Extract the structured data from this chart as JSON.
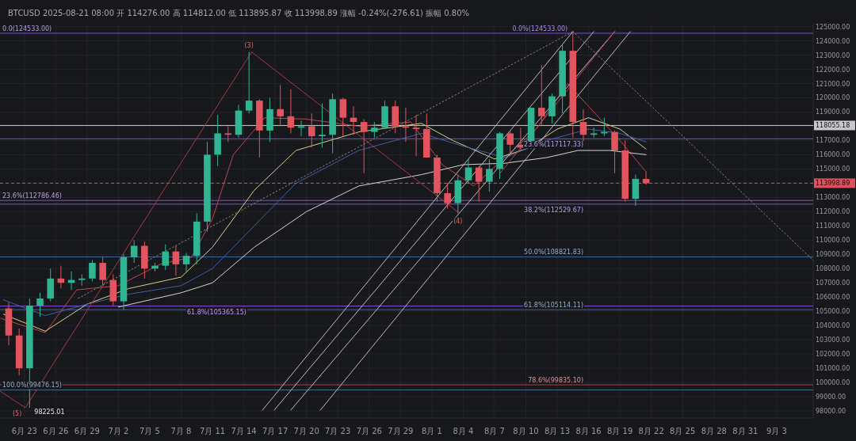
{
  "chart_data": {
    "type": "candlestick",
    "subtitle": "BTCUSD 2025-08-21 08:00 开 114276.00 高 114812.00 低 113895.87 收 113998.89 涨幅 -0.24%(-276.61) 振幅 0.80%",
    "x": [
      "2025-06-21T12:00",
      "2025-06-22T12:00",
      "2025-06-23T12:00",
      "2025-06-24T12:00",
      "2025-06-25T12:00",
      "2025-06-26T12:00",
      "2025-06-27T12:00",
      "2025-06-28T12:00",
      "2025-06-29T12:00",
      "2025-06-30T12:00",
      "2025-07-01T12:00",
      "2025-07-02T12:00",
      "2025-07-03T12:00",
      "2025-07-04T12:00",
      "2025-07-05T12:00",
      "2025-07-06T12:00",
      "2025-07-07T12:00",
      "2025-07-08T12:00",
      "2025-07-09T12:00",
      "2025-07-10T12:00",
      "2025-07-11T12:00",
      "2025-07-12T12:00",
      "2025-07-13T12:00",
      "2025-07-14T12:00",
      "2025-07-15T12:00",
      "2025-07-16T12:00",
      "2025-07-17T12:00",
      "2025-07-18T12:00",
      "2025-07-19T12:00",
      "2025-07-20T12:00",
      "2025-07-21T12:00",
      "2025-07-22T12:00",
      "2025-07-23T12:00",
      "2025-07-24T12:00",
      "2025-07-25T12:00",
      "2025-07-26T12:00",
      "2025-07-27T12:00",
      "2025-07-28T12:00",
      "2025-07-29T12:00",
      "2025-07-30T12:00",
      "2025-07-31T12:00",
      "2025-08-01T12:00",
      "2025-08-02T12:00",
      "2025-08-03T12:00",
      "2025-08-04T12:00",
      "2025-08-05T12:00",
      "2025-08-06T12:00",
      "2025-08-07T12:00",
      "2025-08-08T12:00",
      "2025-08-09T12:00",
      "2025-08-10T12:00",
      "2025-08-11T12:00",
      "2025-08-12T12:00",
      "2025-08-13T12:00",
      "2025-08-14T12:00",
      "2025-08-15T12:00",
      "2025-08-16T12:00",
      "2025-08-17T12:00",
      "2025-08-18T12:00",
      "2025-08-19T12:00",
      "2025-08-20T12:00",
      "2025-08-21T12:00"
    ],
    "ohlc": [
      [
        105200,
        105600,
        102600,
        103300
      ],
      [
        103300,
        103800,
        100500,
        101000
      ],
      [
        101000,
        105900,
        98225.01,
        105400
      ],
      [
        105400,
        106300,
        104600,
        105900
      ],
      [
        105900,
        108000,
        105700,
        107300
      ],
      [
        107300,
        108200,
        106600,
        107000
      ],
      [
        107000,
        107800,
        106500,
        107200
      ],
      [
        107200,
        107600,
        106800,
        107300
      ],
      [
        107300,
        108600,
        107100,
        108400
      ],
      [
        108400,
        108800,
        106800,
        107200
      ],
      [
        107200,
        107600,
        105400,
        105700
      ],
      [
        105700,
        109000,
        105100,
        108800
      ],
      [
        108800,
        110000,
        108400,
        109600
      ],
      [
        109600,
        109900,
        107300,
        108000
      ],
      [
        108000,
        108400,
        107800,
        108200
      ],
      [
        108200,
        109700,
        107900,
        109200
      ],
      [
        109200,
        109600,
        107500,
        108300
      ],
      [
        108300,
        109100,
        107700,
        108900
      ],
      [
        108900,
        111900,
        108300,
        111300
      ],
      [
        111300,
        116900,
        110600,
        116000
      ],
      [
        116000,
        118800,
        115200,
        117500
      ],
      [
        117500,
        118000,
        116900,
        117400
      ],
      [
        117400,
        119500,
        117200,
        119100
      ],
      [
        119100,
        123218,
        118900,
        119800
      ],
      [
        119800,
        119900,
        115800,
        117700
      ],
      [
        117700,
        120000,
        116900,
        119200
      ],
      [
        119200,
        120900,
        118000,
        118700
      ],
      [
        118700,
        120600,
        117500,
        117900
      ],
      [
        117900,
        118400,
        117300,
        118000
      ],
      [
        118000,
        118900,
        116500,
        117300
      ],
      [
        117300,
        119600,
        116500,
        117400
      ],
      [
        117400,
        120300,
        116100,
        119900
      ],
      [
        119900,
        120000,
        117300,
        118600
      ],
      [
        118600,
        119400,
        117400,
        118300
      ],
      [
        118300,
        118500,
        114700,
        117600
      ],
      [
        117600,
        118300,
        117200,
        117900
      ],
      [
        117900,
        119800,
        117800,
        119400
      ],
      [
        119400,
        119800,
        117500,
        118000
      ],
      [
        118000,
        119300,
        116900,
        117900
      ],
      [
        117900,
        118800,
        115900,
        117800
      ],
      [
        117800,
        118900,
        115800,
        115800
      ],
      [
        115800,
        116000,
        112700,
        113300
      ],
      [
        113300,
        114000,
        112200,
        112600
      ],
      [
        112600,
        114600,
        111920,
        114200
      ],
      [
        114200,
        115700,
        114000,
        115100
      ],
      [
        115100,
        115200,
        112700,
        114100
      ],
      [
        114100,
        115700,
        113400,
        115000
      ],
      [
        115000,
        117600,
        114300,
        117500
      ],
      [
        117500,
        117700,
        115900,
        116700
      ],
      [
        116700,
        117900,
        116300,
        116500
      ],
      [
        116500,
        119300,
        116400,
        119300
      ],
      [
        119300,
        122300,
        118100,
        118700
      ],
      [
        118700,
        120300,
        118200,
        120100
      ],
      [
        120100,
        123700,
        118900,
        123300
      ],
      [
        123300,
        124533,
        117200,
        118300
      ],
      [
        118300,
        119200,
        116800,
        117400
      ],
      [
        117400,
        117900,
        117200,
        117500
      ],
      [
        117500,
        118600,
        117300,
        117600
      ],
      [
        117600,
        117700,
        114700,
        116300
      ],
      [
        116300,
        117000,
        112700,
        112900
      ],
      [
        112900,
        114600,
        112400,
        114300
      ],
      [
        114300,
        114812,
        113895.87,
        113998.89
      ]
    ],
    "colors": [
      "#e2545e",
      "#e2545e",
      "#2fb592",
      "#2fb592",
      "#2fb592",
      "#e2545e",
      "#2fb592",
      "#2fb592",
      "#2fb592",
      "#e2545e",
      "#e2545e",
      "#2fb592",
      "#2fb592",
      "#e2545e",
      "#2fb592",
      "#2fb592",
      "#e2545e",
      "#2fb592",
      "#2fb592",
      "#2fb592",
      "#2fb592",
      "#e2545e",
      "#2fb592",
      "#2fb592",
      "#e2545e",
      "#2fb592",
      "#e2545e",
      "#e2545e",
      "#2fb592",
      "#e2545e",
      "#2fb592",
      "#2fb592",
      "#e2545e",
      "#e2545e",
      "#e2545e",
      "#2fb592",
      "#2fb592",
      "#e2545e",
      "#e2545e",
      "#e2545e",
      "#e2545e",
      "#e2545e",
      "#e2545e",
      "#2fb592",
      "#2fb592",
      "#e2545e",
      "#2fb592",
      "#2fb592",
      "#e2545e",
      "#e2545e",
      "#2fb592",
      "#e2545e",
      "#2fb592",
      "#2fb592",
      "#e2545e",
      "#e2545e",
      "#2fb592",
      "#2fb592",
      "#e2545e",
      "#e2545e",
      "#2fb592",
      "#e2545e"
    ],
    "series": [
      {
        "type": "line",
        "color": "#c0454e",
        "line_style": "solid",
        "x": [
          "2025-06-20T18:00",
          "2025-06-25T00:00",
          "2025-06-28T00:00",
          "2025-07-02T00:00",
          "2025-07-06T00:00",
          "2025-07-09T00:00",
          "2025-07-11T00:00",
          "2025-07-13T00:00",
          "2025-07-16T00:00",
          "2025-07-20T00:00",
          "2025-07-25T00:00",
          "2025-07-30T00:00",
          "2025-08-02T00:00",
          "2025-08-05T00:00",
          "2025-08-08T00:00",
          "2025-08-11T00:00",
          "2025-08-14T00:00",
          "2025-08-16T00:00",
          "2025-08-19T00:00",
          "2025-08-21T12:00"
        ],
        "values": [
          104500,
          103500,
          106500,
          106800,
          108300,
          108800,
          111500,
          116000,
          118600,
          118500,
          118000,
          118300,
          115300,
          113800,
          115800,
          117800,
          121000,
          119400,
          117000,
          114800
        ]
      },
      {
        "type": "line",
        "color": "#d6d08a",
        "line_style": "solid",
        "x": [
          "2025-06-21T00:00",
          "2025-06-25T00:00",
          "2025-06-29T00:00",
          "2025-07-03T00:00",
          "2025-07-08T00:00",
          "2025-07-11T00:00",
          "2025-07-15T00:00",
          "2025-07-19T00:00",
          "2025-07-25T00:00",
          "2025-07-31T00:00",
          "2025-08-03T00:00",
          "2025-08-07T00:00",
          "2025-08-10T00:00",
          "2025-08-13T00:00",
          "2025-08-16T00:00",
          "2025-08-19T00:00",
          "2025-08-21T12:00"
        ],
        "values": [
          104800,
          103600,
          105500,
          106600,
          107400,
          109500,
          113500,
          116300,
          117600,
          118200,
          117000,
          115700,
          116400,
          117800,
          118600,
          117800,
          116400
        ]
      },
      {
        "type": "line",
        "color": "#3f5fa8",
        "line_style": "solid",
        "x": [
          "2025-06-21T00:00",
          "2025-06-25T00:00",
          "2025-06-29T00:00",
          "2025-07-03T00:00",
          "2025-07-08T00:00",
          "2025-07-11T00:00",
          "2025-07-15T00:00",
          "2025-07-19T00:00",
          "2025-07-25T00:00",
          "2025-07-31T00:00",
          "2025-08-04T00:00",
          "2025-08-08T00:00",
          "2025-08-12T00:00",
          "2025-08-16T00:00",
          "2025-08-19T00:00",
          "2025-08-21T12:00"
        ],
        "values": [
          105800,
          104700,
          105500,
          106200,
          106800,
          108000,
          111000,
          114000,
          116300,
          117500,
          116600,
          115800,
          117000,
          117800,
          117500,
          116900
        ]
      },
      {
        "type": "line",
        "color": "#d4d4d4",
        "line_style": "solid",
        "x": [
          "2025-07-02T00:00",
          "2025-07-08T00:00",
          "2025-07-11T00:00",
          "2025-07-15T00:00",
          "2025-07-20T00:00",
          "2025-07-25T00:00",
          "2025-07-31T00:00",
          "2025-08-04T00:00",
          "2025-08-08T00:00",
          "2025-08-12T00:00",
          "2025-08-15T00:00",
          "2025-08-18T00:00",
          "2025-08-21T12:00"
        ],
        "values": [
          105300,
          106300,
          107000,
          109500,
          112000,
          113800,
          114600,
          115300,
          115400,
          115800,
          116300,
          116300,
          116000
        ]
      },
      {
        "type": "line",
        "color": "#a83a42",
        "line_style": "solid",
        "x": [
          "2025-06-20T16:00",
          "2025-06-23T02:00",
          "2025-07-14T18:00",
          "2025-08-03T14:00"
        ],
        "values": [
          99400,
          98225.01,
          123218,
          111920
        ]
      },
      {
        "type": "line",
        "color": "#bdbdbd",
        "line_style": "solid",
        "x": [
          "2025-07-15T19:00",
          "2025-08-14T12:00"
        ],
        "values": [
          98060,
          124650
        ]
      },
      {
        "type": "line",
        "color": "#bdbdbd",
        "line_style": "solid",
        "x": [
          "2025-07-16T22:00",
          "2025-08-16T12:00"
        ],
        "values": [
          98060,
          124650
        ]
      },
      {
        "type": "line",
        "color": "#bdbdbd",
        "line_style": "solid",
        "x": [
          "2025-07-18T12:00",
          "2025-08-18T12:00"
        ],
        "values": [
          98060,
          124650
        ]
      },
      {
        "type": "line",
        "color": "#bdbdbd",
        "line_style": "solid",
        "x": [
          "2025-07-21T08:00",
          "2025-08-20T00:00"
        ],
        "values": [
          98060,
          124650
        ]
      },
      {
        "type": "line",
        "color": "#b8404a",
        "line_style": "solid",
        "x": [
          "2025-08-07T12:00",
          "2025-08-18T12:00"
        ],
        "values": [
          114670,
          124650
        ]
      },
      {
        "type": "line",
        "color": "#8a8a8a",
        "line_style": "dotted",
        "x": [
          "2025-06-28T04:00",
          "2025-08-14T12:00"
        ],
        "values": [
          105920,
          124650
        ]
      },
      {
        "type": "line",
        "color": "#8a8a8a",
        "line_style": "dotted",
        "x": [
          "2025-08-14T12:00",
          "2025-09-06T12:00"
        ],
        "values": [
          124650,
          108580
        ]
      }
    ],
    "xlim": [
      "2025-06-20T16:00",
      "2025-09-06T12:00"
    ],
    "xticks": [
      {
        "value": "2025-06-23",
        "label": "6月 23"
      },
      {
        "value": "2025-06-26",
        "label": "6月 26"
      },
      {
        "value": "2025-06-29",
        "label": "6月 29"
      },
      {
        "value": "2025-07-02",
        "label": "7月 2"
      },
      {
        "value": "2025-07-05",
        "label": "7月 5"
      },
      {
        "value": "2025-07-08",
        "label": "7月 8"
      },
      {
        "value": "2025-07-11",
        "label": "7月 11"
      },
      {
        "value": "2025-07-14",
        "label": "7月 14"
      },
      {
        "value": "2025-07-17",
        "label": "7月 17"
      },
      {
        "value": "2025-07-20",
        "label": "7月 20"
      },
      {
        "value": "2025-07-23",
        "label": "7月 23"
      },
      {
        "value": "2025-07-26",
        "label": "7月 26"
      },
      {
        "value": "2025-07-29",
        "label": "7月 29"
      },
      {
        "value": "2025-08-01",
        "label": "8月 1"
      },
      {
        "value": "2025-08-04",
        "label": "8月 4"
      },
      {
        "value": "2025-08-07",
        "label": "8月 7"
      },
      {
        "value": "2025-08-10",
        "label": "8月 10"
      },
      {
        "value": "2025-08-13",
        "label": "8月 13"
      },
      {
        "value": "2025-08-16",
        "label": "8月 16"
      },
      {
        "value": "2025-08-19",
        "label": "8月 19"
      },
      {
        "value": "2025-08-22",
        "label": "8月 22"
      },
      {
        "value": "2025-08-25",
        "label": "8月 25"
      },
      {
        "value": "2025-08-28",
        "label": "8月 28"
      },
      {
        "value": "2025-08-31",
        "label": "8月 31"
      },
      {
        "value": "2025-09-03",
        "label": "9月 3"
      }
    ],
    "ylim": [
      97500,
      125200
    ],
    "yticks": [
      {
        "value": 98000,
        "label": "98000.00"
      },
      {
        "value": 99000,
        "label": "99000.00"
      },
      {
        "value": 100000,
        "label": "100000.00"
      },
      {
        "value": 101000,
        "label": "101000.00"
      },
      {
        "value": 102000,
        "label": "102000.00"
      },
      {
        "value": 103000,
        "label": "103000.00"
      },
      {
        "value": 104000,
        "label": "104000.00"
      },
      {
        "value": 105000,
        "label": "105000.00"
      },
      {
        "value": 106000,
        "label": "106000.00"
      },
      {
        "value": 107000,
        "label": "107000.00"
      },
      {
        "value": 108000,
        "label": "108000.00"
      },
      {
        "value": 109000,
        "label": "109000.00"
      },
      {
        "value": 110000,
        "label": "110000.00"
      },
      {
        "value": 111000,
        "label": "111000.00"
      },
      {
        "value": 112000,
        "label": "112000.00"
      },
      {
        "value": 113000,
        "label": "113000.00"
      },
      {
        "value": 114000,
        "label": null
      },
      {
        "value": 115000,
        "label": "115000.00"
      },
      {
        "value": 116000,
        "label": "116000.00"
      },
      {
        "value": 117000,
        "label": "117000.00"
      },
      {
        "value": 118000,
        "label": null
      },
      {
        "value": 119000,
        "label": "119000.00"
      },
      {
        "value": 120000,
        "label": "120000.00"
      },
      {
        "value": 121000,
        "label": "121000.00"
      },
      {
        "value": 122000,
        "label": "122000.00"
      },
      {
        "value": 123000,
        "label": "123000.00"
      },
      {
        "value": 124000,
        "label": "124000.00"
      },
      {
        "value": 125000,
        "label": "125000.00"
      }
    ],
    "grid": true,
    "ref_lines": [
      {
        "axis": "y",
        "value": 124533,
        "label": "0.0(124533.00)",
        "color": "#7b4fd0",
        "line_style": "solid"
      },
      {
        "axis": "y",
        "value": 117117.33,
        "label": "23.6%(117117.33)",
        "color": "#7b4fd0",
        "line_style": "solid"
      },
      {
        "axis": "y",
        "value": 112786.46,
        "label": "23.6%(112786.46)",
        "color": "#8a4fd6",
        "line_style": "solid"
      },
      {
        "axis": "y",
        "value": 112529.67,
        "label": "38.2%(112529.67)",
        "color": "#7b4fd0",
        "line_style": "solid"
      },
      {
        "axis": "y",
        "value": 108821.83,
        "label": "50.0%(108821.83)",
        "color": "#3d6a9c",
        "line_style": "solid"
      },
      {
        "axis": "y",
        "value": 105365.15,
        "label": "61.8%(105365.15)",
        "color": "#8a4fd6",
        "line_style": "solid"
      },
      {
        "axis": "y",
        "value": 105114.11,
        "label": "61.8%(105114.11)",
        "color": "#3d6a9c",
        "line_style": "solid"
      },
      {
        "axis": "y",
        "value": 99835.1,
        "label": "78.6%(99835.10)",
        "color": "#b0404a",
        "line_style": "solid"
      },
      {
        "axis": "y",
        "value": 99476.15,
        "label": "100.0%(99476.15)",
        "color": "#4a6a8a",
        "line_style": "solid"
      },
      {
        "axis": "y",
        "value": 118055.18,
        "label": "118055.18",
        "color": "#c8c8c8",
        "line_style": "solid"
      },
      {
        "axis": "y",
        "value": 113998.89,
        "label": "113998.89",
        "color": "#d9535d",
        "line_style": "dashed"
      }
    ],
    "annotations": [
      {
        "text": "0.0%(124533.00)",
        "x": "2025-08-14T00:00",
        "y": 124533
      },
      {
        "text": "(3)",
        "x": "2025-07-14T12:00",
        "y": 123218
      },
      {
        "text": "(4)",
        "x": "2025-08-03T12:00",
        "y": 111920
      },
      {
        "text": "(5)",
        "x": "2025-06-23T12:00",
        "y": 98225.01
      },
      {
        "text": "98225.01",
        "x": "2025-06-23T12:00",
        "y": 98225.01
      }
    ]
  }
}
